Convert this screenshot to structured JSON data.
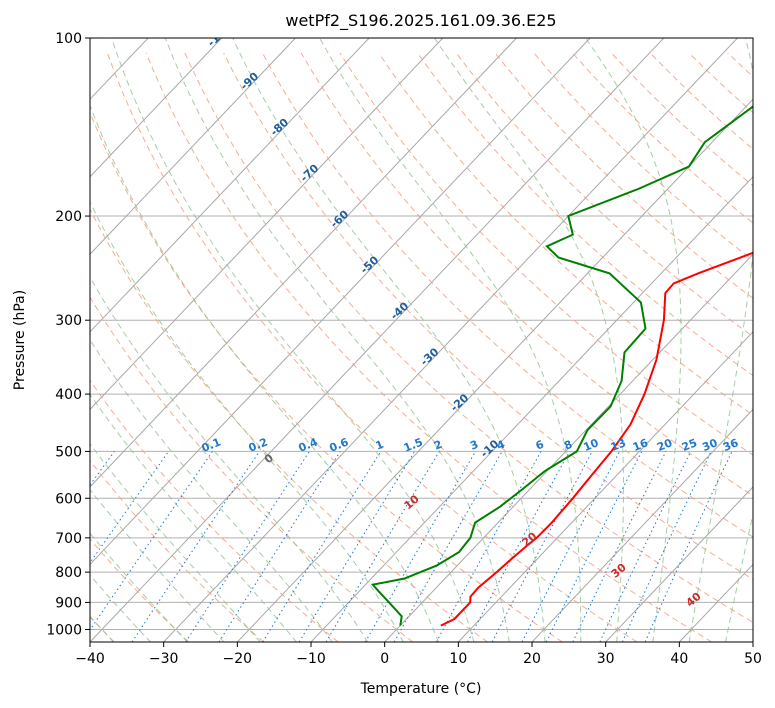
{
  "chart_data": {
    "type": "line",
    "chart_kind": "skew-T log-P diagram",
    "title": "wetPf2_S196.2025.161.09.36.E25",
    "xlabel": "Temperature (°C)",
    "ylabel": "Pressure (hPa)",
    "xlim": [
      -40,
      50
    ],
    "ylim": [
      1050,
      100
    ],
    "y_scale": "log",
    "grid": true,
    "x_ticks": [
      "−40",
      "−30",
      "−20",
      "−10",
      "0",
      "10",
      "20",
      "30",
      "40",
      "50"
    ],
    "y_ticks": [
      "100",
      "200",
      "300",
      "400",
      "500",
      "600",
      "700",
      "800",
      "900",
      "1000"
    ],
    "series": [
      {
        "color": "#ff0000",
        "points": [
          {
            "p": 985,
            "t": 5.5
          },
          {
            "p": 960,
            "t": 6.5
          },
          {
            "p": 900,
            "t": 6.5
          },
          {
            "p": 880,
            "t": 5.8
          },
          {
            "p": 850,
            "t": 5.7
          },
          {
            "p": 800,
            "t": 6.2
          },
          {
            "p": 760,
            "t": 6.5
          },
          {
            "p": 730,
            "t": 6.8
          },
          {
            "p": 700,
            "t": 7.2
          },
          {
            "p": 660,
            "t": 7.3
          },
          {
            "p": 600,
            "t": 7.0
          },
          {
            "p": 550,
            "t": 6.6
          },
          {
            "p": 500,
            "t": 6.2
          },
          {
            "p": 450,
            "t": 5.3
          },
          {
            "p": 400,
            "t": 3.3
          },
          {
            "p": 350,
            "t": 0.5
          },
          {
            "p": 300,
            "t": -3.6
          },
          {
            "p": 270,
            "t": -6.9
          },
          {
            "p": 260,
            "t": -7.0
          },
          {
            "p": 250,
            "t": -5.0
          },
          {
            "p": 230,
            "t": 0.0
          },
          {
            "p": 210,
            "t": 4.8
          },
          {
            "p": 190,
            "t": 8.0
          },
          {
            "p": 170,
            "t": 10.0
          },
          {
            "p": 150,
            "t": 15.0
          },
          {
            "p": 120,
            "t": 25.0
          },
          {
            "p": 100,
            "t": 34.0
          }
        ]
      },
      {
        "color": "#008000",
        "points": [
          {
            "p": 985,
            "t": 0.0
          },
          {
            "p": 950,
            "t": -1.0
          },
          {
            "p": 900,
            "t": -4.5
          },
          {
            "p": 860,
            "t": -7.5
          },
          {
            "p": 840,
            "t": -9.0
          },
          {
            "p": 820,
            "t": -5.5
          },
          {
            "p": 780,
            "t": -2.8
          },
          {
            "p": 740,
            "t": -1.5
          },
          {
            "p": 700,
            "t": -1.8
          },
          {
            "p": 660,
            "t": -3.1
          },
          {
            "p": 620,
            "t": -1.8
          },
          {
            "p": 580,
            "t": -1.0
          },
          {
            "p": 540,
            "t": -0.3
          },
          {
            "p": 500,
            "t": 1.5
          },
          {
            "p": 460,
            "t": 0.2
          },
          {
            "p": 420,
            "t": 0.3
          },
          {
            "p": 380,
            "t": -1.5
          },
          {
            "p": 340,
            "t": -4.8
          },
          {
            "p": 310,
            "t": -5.0
          },
          {
            "p": 280,
            "t": -9.0
          },
          {
            "p": 250,
            "t": -17.0
          },
          {
            "p": 235,
            "t": -26.0
          },
          {
            "p": 225,
            "t": -29.0
          },
          {
            "p": 215,
            "t": -27.0
          },
          {
            "p": 200,
            "t": -30.0
          },
          {
            "p": 180,
            "t": -24.0
          },
          {
            "p": 165,
            "t": -20.0
          },
          {
            "p": 150,
            "t": -21.0
          },
          {
            "p": 130,
            "t": -19.0
          },
          {
            "p": 100,
            "t": -7.0
          }
        ]
      }
    ],
    "dry_adiabats_label_c": [
      "-100",
      "-90",
      "-80",
      "-70",
      "-60",
      "-50",
      "-40",
      "-30",
      "-20",
      "-10"
    ],
    "moist_adiabats_label_c": [
      "0",
      "10",
      "20",
      "30",
      "40"
    ],
    "mixing_ratio_labels": [
      "0.1",
      "0.2",
      "0.4",
      "0.6",
      "1",
      "1.5",
      "2",
      "3",
      "4",
      "6",
      "8",
      "10",
      "13",
      "16",
      "20",
      "25",
      "30",
      "36"
    ],
    "colors": {
      "temperature": "#ff0000",
      "dewpoint": "#008000",
      "dry_adiabat": "#f0a080",
      "moist_adiabat": "#90c090",
      "mixing_ratio": "#1f77d0",
      "dry_label": "#1f5f9f",
      "moist_label": "#cc2a2a"
    }
  }
}
